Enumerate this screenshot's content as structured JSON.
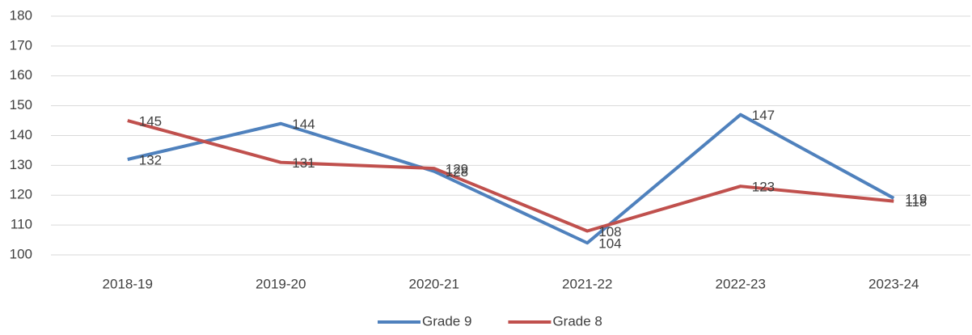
{
  "chart_data": {
    "type": "line",
    "categories": [
      "2018-19",
      "2019-20",
      "2020-21",
      "2021-22",
      "2022-23",
      "2023-24"
    ],
    "series": [
      {
        "name": "Grade 9",
        "color": "#4f81bd",
        "values": [
          132,
          144,
          128,
          104,
          147,
          119
        ]
      },
      {
        "name": "Grade 8",
        "color": "#c0504d",
        "values": [
          145,
          131,
          129,
          108,
          123,
          118
        ]
      }
    ],
    "ylim": [
      100,
      180
    ],
    "yticks": [
      100,
      110,
      120,
      130,
      140,
      150,
      160,
      170,
      180
    ],
    "grid": true,
    "legend": "bottom",
    "data_labels": true
  }
}
